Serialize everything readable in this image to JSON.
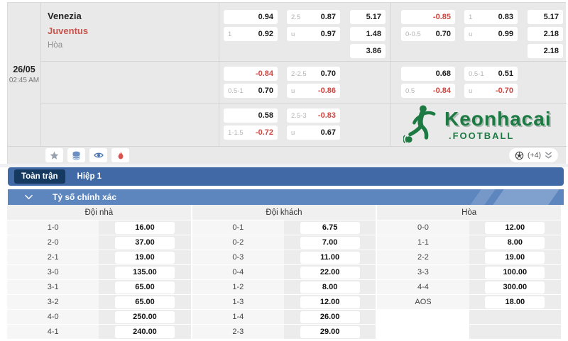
{
  "match": {
    "date": "26/05",
    "time": "02:45 AM",
    "home": "Venezia",
    "away": "Juventus",
    "draw_label": "Hòa"
  },
  "odds": {
    "rows": [
      {
        "a": {
          "hdp": [
            {
              "label": "",
              "value": "0.94"
            },
            {
              "label": "1",
              "value": "0.92"
            }
          ],
          "ou": [
            {
              "label": "2.5",
              "value": "0.87"
            },
            {
              "label": "u",
              "value": "0.97"
            }
          ],
          "x12": [
            "5.17",
            "1.48",
            "3.86"
          ]
        },
        "b": {
          "hdp": [
            {
              "label": "",
              "value": "-0.85"
            },
            {
              "label": "0-0.5",
              "value": "0.70"
            }
          ],
          "ou": [
            {
              "label": "1",
              "value": "0.83"
            },
            {
              "label": "u",
              "value": "0.99"
            }
          ],
          "x12": [
            "5.17",
            "2.18",
            "2.18"
          ]
        }
      },
      {
        "a": {
          "hdp": [
            {
              "label": "",
              "value": "-0.84"
            },
            {
              "label": "0.5-1",
              "value": "0.70"
            }
          ],
          "ou": [
            {
              "label": "2-2.5",
              "value": "0.70"
            },
            {
              "label": "u",
              "value": "-0.86"
            }
          ],
          "x12": []
        },
        "b": {
          "hdp": [
            {
              "label": "",
              "value": "0.68"
            },
            {
              "label": "0.5",
              "value": "-0.84"
            }
          ],
          "ou": [
            {
              "label": "0.5-1",
              "value": "0.51"
            },
            {
              "label": "u",
              "value": "-0.70"
            }
          ],
          "x12": []
        }
      },
      {
        "a": {
          "hdp": [
            {
              "label": "",
              "value": "0.58"
            },
            {
              "label": "1-1.5",
              "value": "-0.72"
            }
          ],
          "ou": [
            {
              "label": "2.5-3",
              "value": "-0.83"
            },
            {
              "label": "u",
              "value": "0.67"
            }
          ],
          "x12": []
        },
        "b": {
          "logo": true
        }
      }
    ]
  },
  "logo": {
    "title": "Keonhacai",
    "subtitle": ".FOOTBALL"
  },
  "toolbar": {
    "icons": [
      "favorite-star",
      "stats-database",
      "watch-eye",
      "hot-flame"
    ],
    "more_count": "(+4)"
  },
  "tabs": {
    "items": [
      {
        "label": "Toàn trận",
        "active": true
      },
      {
        "label": "Hiệp 1",
        "active": false
      }
    ]
  },
  "section": {
    "title": "Tỷ số chính xác"
  },
  "score_table": {
    "columns": [
      {
        "header": "Đội nhà",
        "rows": [
          [
            "1-0",
            "16.00"
          ],
          [
            "2-0",
            "37.00"
          ],
          [
            "2-1",
            "19.00"
          ],
          [
            "3-0",
            "135.00"
          ],
          [
            "3-1",
            "65.00"
          ],
          [
            "3-2",
            "65.00"
          ],
          [
            "4-0",
            "250.00"
          ],
          [
            "4-1",
            "240.00"
          ]
        ]
      },
      {
        "header": "Đội khách",
        "rows": [
          [
            "0-1",
            "6.75"
          ],
          [
            "0-2",
            "7.00"
          ],
          [
            "0-3",
            "11.00"
          ],
          [
            "0-4",
            "22.00"
          ],
          [
            "1-2",
            "8.00"
          ],
          [
            "1-3",
            "12.00"
          ],
          [
            "1-4",
            "26.00"
          ],
          [
            "2-3",
            "29.00"
          ]
        ]
      },
      {
        "header": "Hòa",
        "rows": [
          [
            "0-0",
            "12.00"
          ],
          [
            "1-1",
            "8.00"
          ],
          [
            "2-2",
            "19.00"
          ],
          [
            "3-3",
            "100.00"
          ],
          [
            "4-4",
            "300.00"
          ],
          [
            "AOS",
            "18.00"
          ]
        ]
      }
    ]
  },
  "colors": {
    "negative_odds": "#d0453f",
    "tab_bar_blue": "#4169a6",
    "tab_active_navy": "#16395f",
    "section_blue": "#5d86bf",
    "logo_green": "#1d7a43",
    "away_team_red": "#c4564e"
  }
}
